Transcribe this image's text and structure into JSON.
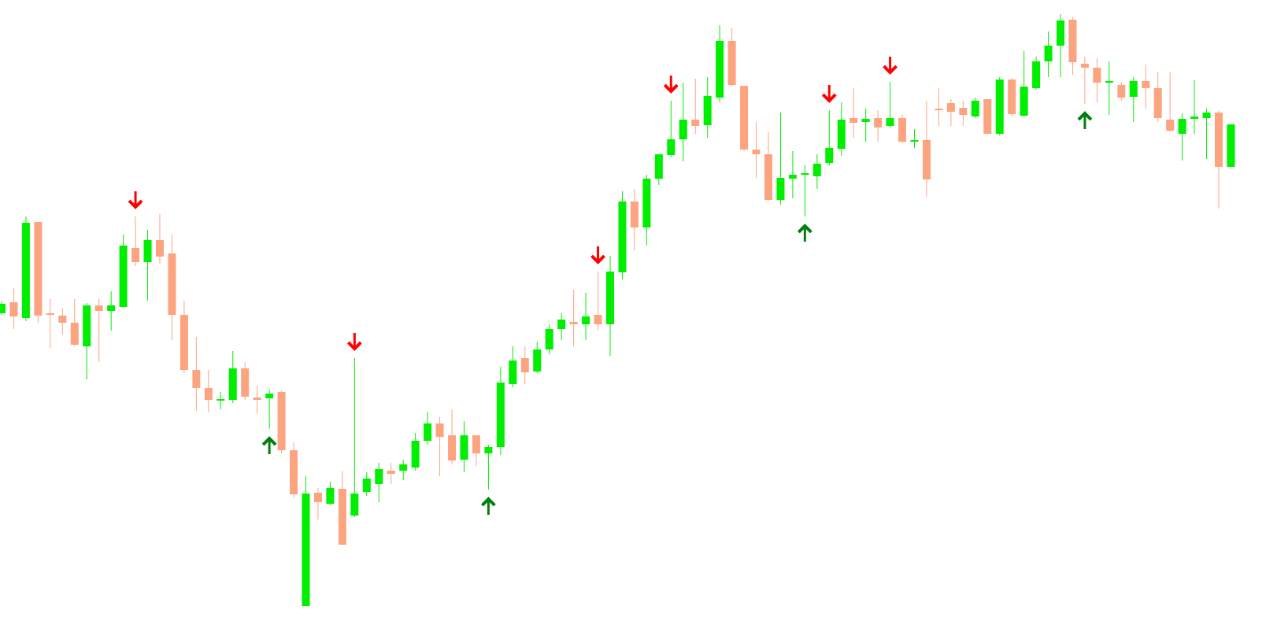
{
  "chart_data": {
    "type": "candlestick",
    "ylim": [
      0,
      800
    ],
    "up_color": "#00ee00",
    "down_color": "#fca480",
    "buy_color": "#007f0e",
    "sell_color": "#ff0000",
    "open": [
      402,
      416,
      396,
      518,
      402,
      399,
      390,
      360,
      412,
      405,
      410,
      485,
      467,
      495,
      478,
      400,
      330,
      307,
      291,
      292,
      332,
      295,
      294,
      302,
      228,
      30,
      174,
      160,
      179,
      145,
      175,
      185,
      202,
      202,
      206,
      240,
      262,
      247,
      216,
      247,
      224,
      232,
      312,
      345,
      328,
      356,
      382,
      391,
      388,
      400,
      388,
      454,
      544,
      511,
      573,
      603,
      623,
      648,
      641,
      676,
      748,
      691,
      610,
      604,
      546,
      573,
      578,
      576,
      593,
      611,
      650,
      645,
      650,
      640,
      650,
      620,
      622,
      662,
      669,
      663,
      652,
      674,
      630,
      699,
      653,
      688,
      722,
      742,
      775,
      719,
      714,
      695,
      692,
      677,
      697,
      688,
      648,
      630,
      649,
      650,
      657,
      588
    ],
    "high": [
      417,
      434,
      525,
      518,
      420,
      408,
      420,
      415,
      420,
      430,
      502,
      525,
      508,
      528,
      502,
      418,
      372,
      330,
      302,
      354,
      340,
      310,
      305,
      304,
      238,
      195,
      180,
      188,
      202,
      345,
      200,
      212,
      212,
      216,
      250,
      277,
      270,
      280,
      265,
      247,
      235,
      334,
      360,
      360,
      366,
      388,
      402,
      432,
      428,
      455,
      475,
      557,
      560,
      578,
      604,
      672,
      695,
      700,
      702,
      768,
      765,
      691,
      645,
      632,
      657,
      608,
      590,
      604,
      660,
      670,
      688,
      662,
      660,
      696,
      654,
      636,
      672,
      688,
      674,
      672,
      676,
      674,
      702,
      701,
      735,
      728,
      760,
      782,
      778,
      728,
      726,
      722,
      696,
      702,
      718,
      709,
      708,
      656,
      698,
      662,
      660,
      642
    ],
    "low": [
      400,
      382,
      392,
      390,
      358,
      375,
      360,
      318,
      340,
      380,
      410,
      462,
      418,
      465,
      368,
      326,
      278,
      276,
      280,
      288,
      292,
      275,
      255,
      224,
      168,
      30,
      140,
      158,
      108,
      143,
      170,
      162,
      185,
      190,
      202,
      235,
      195,
      210,
      200,
      208,
      178,
      222,
      308,
      312,
      326,
      350,
      368,
      360,
      368,
      380,
      348,
      445,
      482,
      488,
      565,
      600,
      595,
      630,
      625,
      670,
      690,
      608,
      574,
      544,
      540,
      548,
      525,
      560,
      590,
      602,
      625,
      620,
      620,
      638,
      618,
      612,
      550,
      640,
      640,
      640,
      650,
      630,
      628,
      652,
      652,
      686,
      702,
      702,
      705,
      668,
      670,
      654,
      672,
      645,
      662,
      645,
      632,
      596,
      630,
      598,
      535,
      588
    ],
    "close": [
      414,
      398,
      517,
      399,
      400,
      390,
      362,
      412,
      405,
      412,
      488,
      467,
      495,
      474,
      400,
      330,
      307,
      292,
      293,
      332,
      296,
      292,
      300,
      228,
      172,
      173,
      162,
      180,
      108,
      173,
      192,
      204,
      198,
      210,
      240,
      262,
      245,
      215,
      247,
      224,
      232,
      314,
      342,
      327,
      356,
      382,
      394,
      388,
      398,
      388,
      455,
      544,
      511,
      573,
      604,
      623,
      648,
      640,
      678,
      748,
      692,
      610,
      604,
      546,
      574,
      578,
      580,
      592,
      612,
      648,
      644,
      649,
      638,
      650,
      620,
      622,
      572,
      660,
      658,
      654,
      672,
      630,
      699,
      655,
      690,
      722,
      742,
      774,
      721,
      714,
      695,
      697,
      676,
      697,
      688,
      650,
      634,
      649,
      652,
      657,
      588,
      642
    ],
    "sell_signals": [
      11,
      29,
      49,
      55,
      68,
      73
    ],
    "buy_signals": [
      22,
      40,
      66,
      89
    ]
  }
}
